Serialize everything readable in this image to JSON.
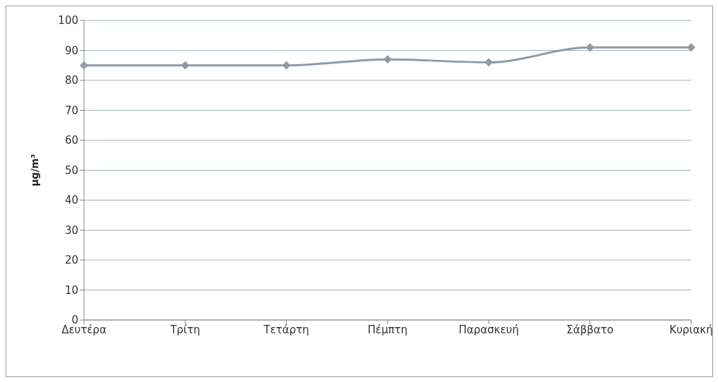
{
  "chart_data": {
    "type": "line",
    "ylabel": "μg/m³",
    "categories": [
      "Δευτέρα",
      "Τρίτη",
      "Τετάρτη",
      "Πέμπτη",
      "Παρασκευή",
      "Σάββατο",
      "Κυριακή"
    ],
    "series": [
      {
        "color": "#8f9aa6",
        "values": [
          85,
          85,
          85,
          87,
          86,
          91,
          91
        ]
      }
    ],
    "ylim": [
      0,
      100
    ],
    "yticks": [
      0,
      10,
      20,
      30,
      40,
      50,
      60,
      70,
      80,
      90,
      100
    ],
    "grid": "y",
    "legend": false,
    "marker": "diamond",
    "line_style": "solid"
  }
}
